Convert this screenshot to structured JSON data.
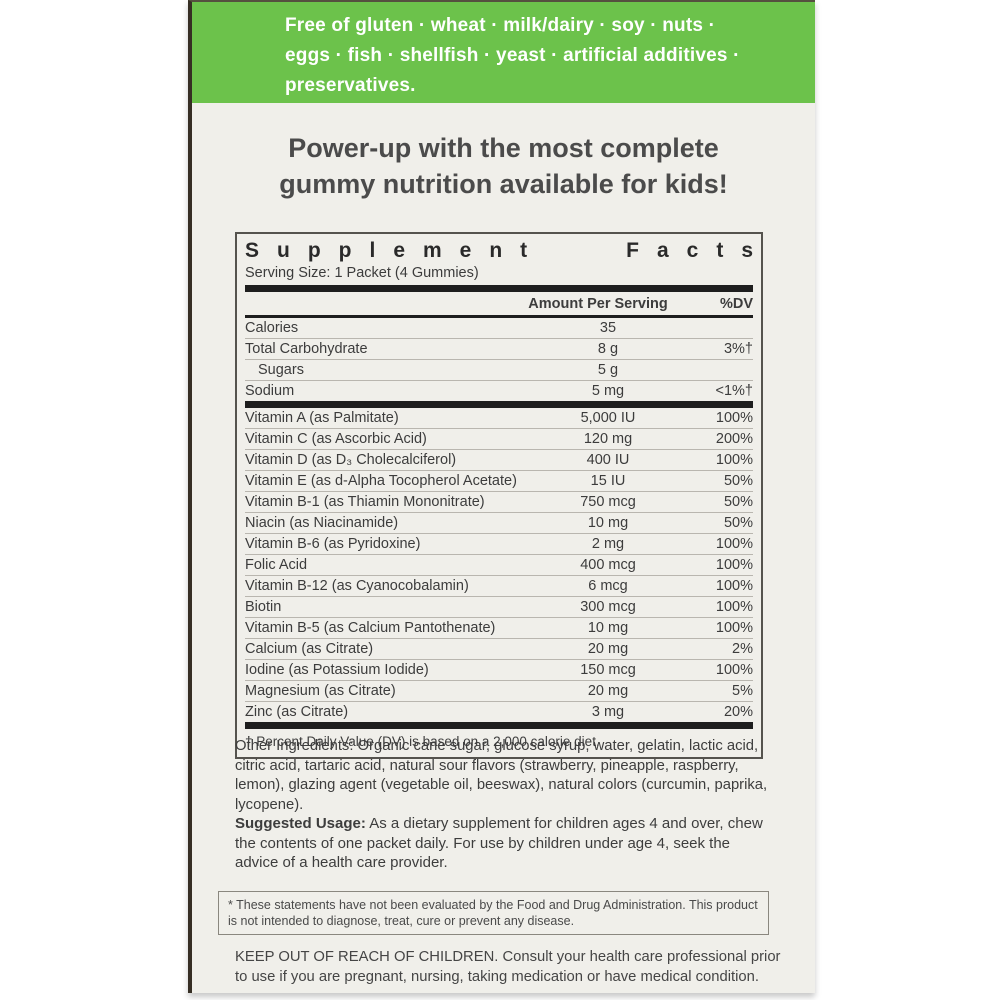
{
  "colors": {
    "banner_green": "#6cc24b",
    "package_bg": "#f0efea",
    "rule_dark": "#1e1e1e"
  },
  "banner": {
    "lines": [
      "Free of gluten · wheat · milk/dairy · soy · nuts ·",
      "eggs · fish · shellfish · yeast · artificial additives ·",
      "preservatives."
    ]
  },
  "headline": {
    "line1": "Power-up with the most complete",
    "line2": "gummy nutrition available for kids!"
  },
  "supplement_facts": {
    "title_word1": "Supplement",
    "title_word2": "Facts",
    "serving_size": "Serving Size: 1 Packet (4 Gummies)",
    "col_amount": "Amount Per Serving",
    "col_dv": "%DV",
    "rows": [
      {
        "name": "Calories",
        "amount": "35",
        "dv": ""
      },
      {
        "name": "Total Carbohydrate",
        "amount": "8 g",
        "dv": "3%†"
      },
      {
        "name": "Sugars",
        "amount": "5 g",
        "dv": ""
      },
      {
        "name": "Sodium",
        "amount": "5 mg",
        "dv": "<1%†"
      },
      {
        "name": "Vitamin A (as Palmitate)",
        "amount": "5,000 IU",
        "dv": "100%"
      },
      {
        "name": "Vitamin C (as Ascorbic Acid)",
        "amount": "120 mg",
        "dv": "200%"
      },
      {
        "name": "Vitamin D (as D₃ Cholecalciferol)",
        "amount": "400 IU",
        "dv": "100%"
      },
      {
        "name": "Vitamin E (as d-Alpha Tocopherol Acetate)",
        "amount": "15 IU",
        "dv": "50%"
      },
      {
        "name": "Vitamin B-1 (as Thiamin Mononitrate)",
        "amount": "750 mcg",
        "dv": "50%"
      },
      {
        "name": "Niacin (as Niacinamide)",
        "amount": "10 mg",
        "dv": "50%"
      },
      {
        "name": "Vitamin B-6 (as Pyridoxine)",
        "amount": "2 mg",
        "dv": "100%"
      },
      {
        "name": "Folic Acid",
        "amount": "400 mcg",
        "dv": "100%"
      },
      {
        "name": "Vitamin B-12 (as Cyanocobalamin)",
        "amount": "6 mcg",
        "dv": "100%"
      },
      {
        "name": "Biotin",
        "amount": "300 mcg",
        "dv": "100%"
      },
      {
        "name": "Vitamin B-5 (as Calcium Pantothenate)",
        "amount": "10 mg",
        "dv": "100%"
      },
      {
        "name": "Calcium (as Citrate)",
        "amount": "20 mg",
        "dv": "2%"
      },
      {
        "name": "Iodine (as Potassium Iodide)",
        "amount": "150 mcg",
        "dv": "100%"
      },
      {
        "name": "Magnesium (as Citrate)",
        "amount": "20 mg",
        "dv": "5%"
      },
      {
        "name": "Zinc (as Citrate)",
        "amount": "3 mg",
        "dv": "20%"
      }
    ],
    "footnote": "† Percent Daily Value (DV) is based on a 2,000 calorie diet."
  },
  "other_ingredients": "Other Ingredients: Organic cane sugar, glucose syrup, water, gelatin, lactic acid, citric acid, tartaric acid, natural sour flavors (strawberry, pineapple, raspberry, lemon), glazing agent (vegetable oil, beeswax), natural colors (curcumin, paprika, lycopene).",
  "suggested_usage": {
    "label": "Suggested Usage:",
    "text": " As a dietary supplement for children ages 4 and over, chew the contents of one packet daily. For use by children under age 4, seek the advice of a health care provider."
  },
  "disclaimer": "* These statements have not been evaluated by the Food and Drug Administration. This product is not intended to diagnose, treat, cure or prevent any disease.",
  "keep_out": "KEEP OUT OF REACH OF CHILDREN. Consult your health care professional prior to use if you are pregnant, nursing, taking medication or have medical condition."
}
